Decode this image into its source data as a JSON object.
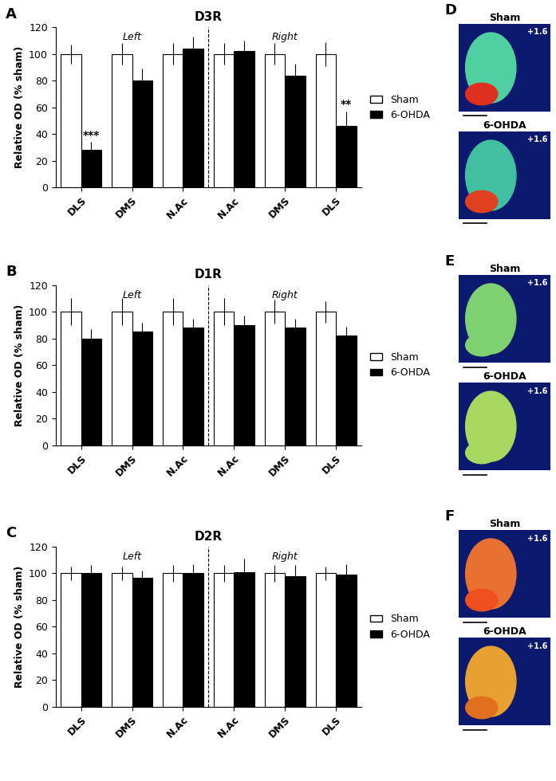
{
  "chart_data": [
    {
      "type": "bar",
      "panel": "A",
      "title": "D3R",
      "y_label": "Relative OD (% sham)",
      "categories": [
        "DLS",
        "DMS",
        "N.Ac",
        "N.Ac",
        "DMS",
        "DLS"
      ],
      "sides": [
        "Left",
        "Right"
      ],
      "ylim": [
        0,
        120
      ],
      "yticks": [
        0,
        20,
        40,
        60,
        80,
        100,
        120
      ],
      "legend": "right",
      "series": [
        {
          "name": "Sham",
          "color": "#ffffff",
          "values": [
            100,
            100,
            100,
            100,
            100,
            100
          ],
          "errors": [
            7,
            8,
            8,
            8,
            8,
            9
          ]
        },
        {
          "name": "6-OHDA",
          "color": "#000000",
          "values": [
            28,
            80,
            104,
            102,
            84,
            46
          ],
          "errors": [
            6,
            9,
            9,
            8,
            9,
            11
          ],
          "significance": [
            "***",
            null,
            null,
            null,
            null,
            "**"
          ]
        }
      ]
    },
    {
      "type": "bar",
      "panel": "B",
      "title": "D1R",
      "y_label": "Relative OD (% sham)",
      "categories": [
        "DLS",
        "DMS",
        "N.Ac",
        "N.Ac",
        "DMS",
        "DLS"
      ],
      "sides": [
        "Left",
        "Right"
      ],
      "ylim": [
        0,
        120
      ],
      "yticks": [
        0,
        20,
        40,
        60,
        80,
        100,
        120
      ],
      "legend": "right",
      "series": [
        {
          "name": "Sham",
          "color": "#ffffff",
          "values": [
            100,
            100,
            100,
            100,
            100,
            100
          ],
          "errors": [
            10,
            10,
            10,
            10,
            9,
            8
          ]
        },
        {
          "name": "6-OHDA",
          "color": "#000000",
          "values": [
            80,
            85,
            88,
            90,
            88,
            82
          ],
          "errors": [
            7,
            7,
            7,
            7,
            7,
            7
          ]
        }
      ]
    },
    {
      "type": "bar",
      "panel": "C",
      "title": "D2R",
      "y_label": "Relative OD (% sham)",
      "categories": [
        "DLS",
        "DMS",
        "N.Ac",
        "N.Ac",
        "DMS",
        "DLS"
      ],
      "sides": [
        "Left",
        "Right"
      ],
      "ylim": [
        0,
        120
      ],
      "yticks": [
        0,
        20,
        40,
        60,
        80,
        100,
        120
      ],
      "legend": "right",
      "series": [
        {
          "name": "Sham",
          "color": "#ffffff",
          "values": [
            100,
            100,
            100,
            100,
            100,
            100
          ],
          "errors": [
            5,
            5,
            6,
            6,
            6,
            5
          ]
        },
        {
          "name": "6-OHDA",
          "color": "#000000",
          "values": [
            100,
            97,
            100,
            101,
            98,
            99
          ],
          "errors": [
            6,
            5,
            7,
            10,
            8,
            8
          ]
        }
      ]
    }
  ],
  "images": [
    {
      "panel": "D",
      "items": [
        {
          "title": "Sham",
          "coordinate": "+1.6"
        },
        {
          "title": "6-OHDA",
          "coordinate": "+1.6"
        }
      ]
    },
    {
      "panel": "E",
      "items": [
        {
          "title": "Sham",
          "coordinate": "+1.6"
        },
        {
          "title": "6-OHDA",
          "coordinate": "+1.6"
        }
      ]
    },
    {
      "panel": "F",
      "items": [
        {
          "title": "Sham",
          "coordinate": "+1.6"
        },
        {
          "title": "6-OHDA",
          "coordinate": "+1.6"
        }
      ]
    }
  ]
}
